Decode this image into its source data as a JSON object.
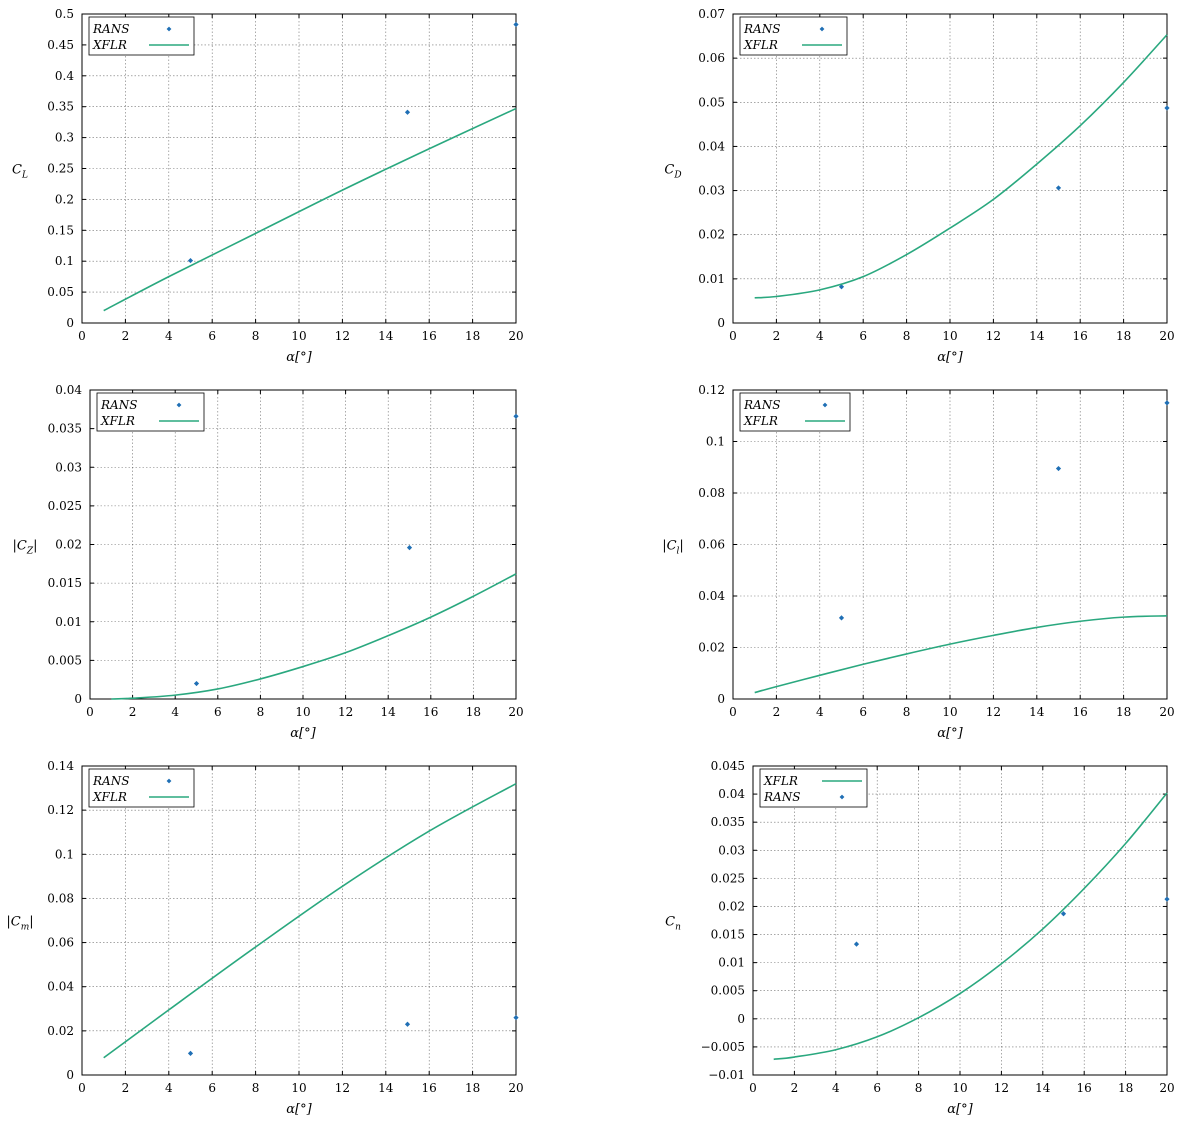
{
  "colors": {
    "rans": "#1f6fb5",
    "xflr": "#2aa87f"
  },
  "chart_data": [
    {
      "type": "line",
      "xlabel": "α[°]",
      "ylabel": "C_L",
      "xlim": [
        0,
        20
      ],
      "ylim": [
        0,
        0.5
      ],
      "xticks": [
        "0",
        "2",
        "4",
        "6",
        "8",
        "10",
        "12",
        "14",
        "16",
        "18",
        "20"
      ],
      "yticks": [
        "0",
        "0.05",
        "0.1",
        "0.15",
        "0.2",
        "0.25",
        "0.3",
        "0.35",
        "0.4",
        "0.45",
        "0.5"
      ],
      "legend": [
        "RANS",
        "XFLR"
      ],
      "legend_position": "top-left",
      "grid": true,
      "series": [
        {
          "name": "RANS",
          "kind": "scatter",
          "x": [
            5,
            15,
            20
          ],
          "y": [
            0.101,
            0.341,
            0.483
          ]
        },
        {
          "name": "XFLR",
          "kind": "line",
          "x": [
            1,
            4,
            8,
            12,
            16,
            20
          ],
          "y": [
            0.02,
            0.075,
            0.145,
            0.215,
            0.282,
            0.347
          ]
        }
      ]
    },
    {
      "type": "line",
      "xlabel": "α[°]",
      "ylabel": "C_D",
      "xlim": [
        0,
        20
      ],
      "ylim": [
        0,
        0.07
      ],
      "xticks": [
        "0",
        "2",
        "4",
        "6",
        "8",
        "10",
        "12",
        "14",
        "16",
        "18",
        "20"
      ],
      "yticks": [
        "0",
        "0.01",
        "0.02",
        "0.03",
        "0.04",
        "0.05",
        "0.06",
        "0.07"
      ],
      "legend": [
        "RANS",
        "XFLR"
      ],
      "legend_position": "top-left",
      "grid": true,
      "series": [
        {
          "name": "RANS",
          "kind": "scatter",
          "x": [
            5,
            15,
            20
          ],
          "y": [
            0.0082,
            0.0306,
            0.0487
          ]
        },
        {
          "name": "XFLR",
          "kind": "line",
          "x": [
            1,
            2,
            4,
            6,
            8,
            10,
            12,
            14,
            16,
            18,
            20
          ],
          "y": [
            0.0057,
            0.006,
            0.0075,
            0.0105,
            0.0155,
            0.0215,
            0.028,
            0.036,
            0.0447,
            0.0545,
            0.0653
          ]
        }
      ]
    },
    {
      "type": "line",
      "xlabel": "α[°]",
      "ylabel": "|C_Z|",
      "xlim": [
        0,
        20
      ],
      "ylim": [
        0,
        0.04
      ],
      "xticks": [
        "0",
        "2",
        "4",
        "6",
        "8",
        "10",
        "12",
        "14",
        "16",
        "18",
        "20"
      ],
      "yticks": [
        "0",
        "0.005",
        "0.01",
        "0.015",
        "0.02",
        "0.025",
        "0.03",
        "0.035",
        "0.04"
      ],
      "legend": [
        "RANS",
        "XFLR"
      ],
      "legend_position": "top-left",
      "grid": true,
      "series": [
        {
          "name": "RANS",
          "kind": "scatter",
          "x": [
            5,
            15,
            20
          ],
          "y": [
            0.002,
            0.0196,
            0.0366
          ]
        },
        {
          "name": "XFLR",
          "kind": "line",
          "x": [
            1,
            2,
            4,
            6,
            8,
            10,
            12,
            14,
            16,
            18,
            20
          ],
          "y": [
            0.0,
            0.0001,
            0.0005,
            0.0013,
            0.0026,
            0.0042,
            0.006,
            0.0082,
            0.0106,
            0.0133,
            0.0162
          ]
        }
      ]
    },
    {
      "type": "line",
      "xlabel": "α[°]",
      "ylabel": "|C_l|",
      "xlim": [
        0,
        20
      ],
      "ylim": [
        0,
        0.12
      ],
      "xticks": [
        "0",
        "2",
        "4",
        "6",
        "8",
        "10",
        "12",
        "14",
        "16",
        "18",
        "20"
      ],
      "yticks": [
        "0",
        "0.02",
        "0.04",
        "0.06",
        "0.08",
        "0.1",
        "0.12"
      ],
      "legend": [
        "RANS",
        "XFLR"
      ],
      "legend_position": "top-left",
      "grid": true,
      "series": [
        {
          "name": "RANS",
          "kind": "scatter",
          "x": [
            5,
            15,
            20
          ],
          "y": [
            0.0315,
            0.0895,
            0.115
          ]
        },
        {
          "name": "XFLR",
          "kind": "line",
          "x": [
            1,
            2,
            4,
            6,
            8,
            10,
            12,
            14,
            16,
            18,
            20
          ],
          "y": [
            0.0025,
            0.0048,
            0.0092,
            0.0135,
            0.0175,
            0.0213,
            0.0247,
            0.0278,
            0.0302,
            0.0318,
            0.0323
          ]
        }
      ]
    },
    {
      "type": "line",
      "xlabel": "α[°]",
      "ylabel": "|C_m|",
      "xlim": [
        0,
        20
      ],
      "ylim": [
        0,
        0.14
      ],
      "xticks": [
        "0",
        "2",
        "4",
        "6",
        "8",
        "10",
        "12",
        "14",
        "16",
        "18",
        "20"
      ],
      "yticks": [
        "0",
        "0.02",
        "0.04",
        "0.06",
        "0.08",
        "0.1",
        "0.12",
        "0.14"
      ],
      "legend": [
        "RANS",
        "XFLR"
      ],
      "legend_position": "top-left",
      "grid": true,
      "series": [
        {
          "name": "RANS",
          "kind": "scatter",
          "x": [
            5,
            15,
            20
          ],
          "y": [
            0.0098,
            0.023,
            0.026
          ]
        },
        {
          "name": "XFLR",
          "kind": "line",
          "x": [
            1,
            4,
            8,
            12,
            16,
            20
          ],
          "y": [
            0.0078,
            0.0295,
            0.058,
            0.0855,
            0.1105,
            0.132
          ]
        }
      ]
    },
    {
      "type": "line",
      "xlabel": "α[°]",
      "ylabel": "C_n",
      "xlim": [
        0,
        20
      ],
      "ylim": [
        -0.01,
        0.045
      ],
      "xticks": [
        "0",
        "2",
        "4",
        "6",
        "8",
        "10",
        "12",
        "14",
        "16",
        "18",
        "20"
      ],
      "yticks": [
        "−0.01",
        "−0.005",
        "0",
        "0.005",
        "0.01",
        "0.015",
        "0.02",
        "0.025",
        "0.03",
        "0.035",
        "0.04",
        "0.045"
      ],
      "legend": [
        "XFLR",
        "RANS"
      ],
      "legend_position": "top-left",
      "grid": true,
      "series": [
        {
          "name": "XFLR",
          "kind": "line",
          "x": [
            1,
            2,
            4,
            6,
            8,
            10,
            12,
            14,
            16,
            18,
            20
          ],
          "y": [
            -0.0072,
            -0.0068,
            -0.0055,
            -0.0032,
            0.0002,
            0.0045,
            0.0098,
            0.016,
            0.0232,
            0.0312,
            0.0402
          ]
        },
        {
          "name": "RANS",
          "kind": "scatter",
          "x": [
            5,
            15,
            20
          ],
          "y": [
            0.0133,
            0.0187,
            0.0213
          ]
        }
      ]
    }
  ]
}
